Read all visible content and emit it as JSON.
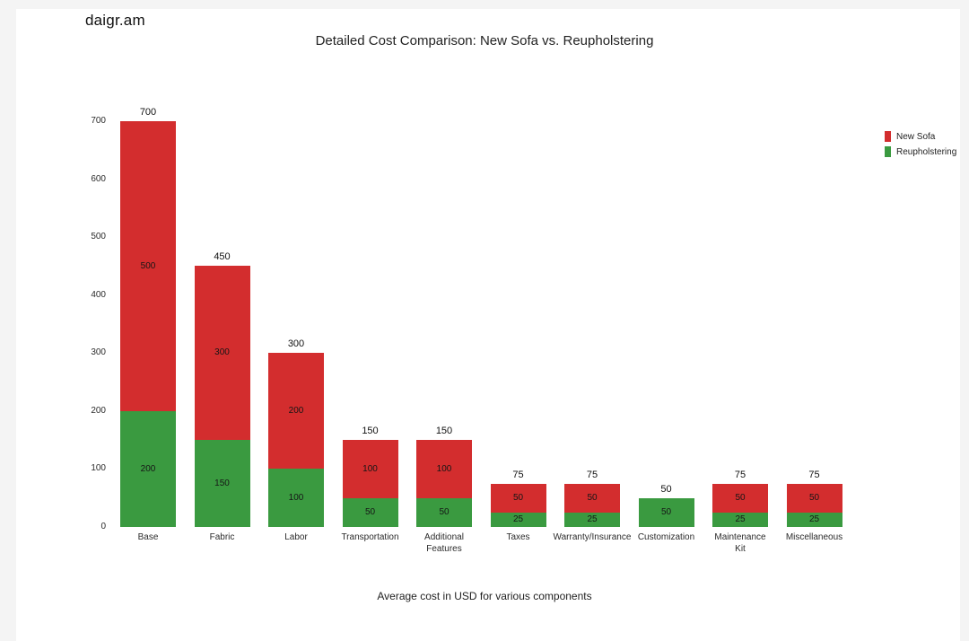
{
  "logo": "daigr.am",
  "chart_data": {
    "type": "bar",
    "stacked": true,
    "title": "Detailed Cost Comparison: New Sofa vs. Reupholstering",
    "xlabel": "Average cost in USD for various components",
    "ylim": [
      0,
      700
    ],
    "yticks": [
      0,
      100,
      200,
      300,
      400,
      500,
      600,
      700
    ],
    "grid": false,
    "legend_position": "top-right",
    "categories": [
      "Base",
      "Fabric",
      "Labor",
      "Transportation",
      "Additional\nFeatures",
      "Taxes",
      "Warranty/Insurance",
      "Customization",
      "Maintenance\nKit",
      "Miscellaneous"
    ],
    "totals": [
      700,
      450,
      300,
      150,
      150,
      75,
      75,
      50,
      75,
      75
    ],
    "series": [
      {
        "name": "New Sofa",
        "color": "#d32d2e",
        "values": [
          500,
          300,
          200,
          100,
          100,
          50,
          50,
          0,
          50,
          50
        ]
      },
      {
        "name": "Reupholstering",
        "color": "#3a9a40",
        "values": [
          200,
          150,
          100,
          50,
          50,
          25,
          25,
          50,
          25,
          25
        ]
      }
    ]
  }
}
